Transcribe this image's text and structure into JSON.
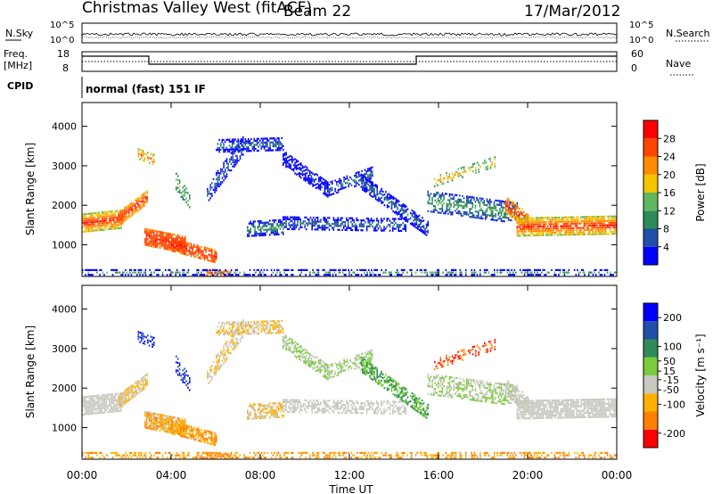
{
  "header": {
    "title": "Christmas Valley West (fitACF)",
    "beam": "Beam 22",
    "date": "17/Mar/2012"
  },
  "noise_panel": {
    "left_label": "N.Sky",
    "left_ticks": [
      "10^5",
      "10^0"
    ],
    "right_label": "N.Search",
    "right_ticks": [
      "10^5",
      "10^0"
    ]
  },
  "freq_panel": {
    "left_label_1": "Freq.",
    "left_label_2": "[MHz]",
    "left_ticks": [
      "18",
      "8"
    ],
    "right_label": "Nave",
    "right_ticks": [
      "60",
      "0"
    ]
  },
  "cpid": {
    "label": "CPID",
    "value": "normal (fast) 151 IF"
  },
  "colors": {
    "power_scale": [
      "#0000ff",
      "#1f4fa8",
      "#2e8b57",
      "#5fb85f",
      "#f5c400",
      "#ff8c00",
      "#ff4500",
      "#ff0000"
    ],
    "velocity_scale": [
      "#ff0000",
      "#ff7f00",
      "#ffb000",
      "#c8c8c0",
      "#7ccd3c",
      "#2e8b57",
      "#1f4fa8",
      "#0000ff"
    ]
  },
  "chart_data": [
    {
      "type": "heatmap",
      "ylabel": "Slant Range [km]",
      "xlabel": "Time UT",
      "x_ticks": [
        "00:00",
        "04:00",
        "08:00",
        "12:00",
        "16:00",
        "20:00",
        "00:00"
      ],
      "y_ticks": [
        1000,
        2000,
        3000,
        4000
      ],
      "ylim": [
        200,
        4600
      ],
      "xlim_hours": [
        0,
        24
      ],
      "colorbar": {
        "label": "Power [dB]",
        "ticks": [
          28,
          24,
          20,
          16,
          12,
          8,
          4
        ],
        "range": [
          0,
          32
        ]
      }
    },
    {
      "type": "heatmap",
      "ylabel": "Slant Range [km]",
      "xlabel": "Time UT",
      "x_ticks": [
        "00:00",
        "04:00",
        "08:00",
        "12:00",
        "16:00",
        "20:00",
        "00:00"
      ],
      "y_ticks": [
        1000,
        2000,
        3000,
        4000
      ],
      "ylim": [
        200,
        4600
      ],
      "xlim_hours": [
        0,
        24
      ],
      "colorbar": {
        "label": "Velocity [m s⁻¹]",
        "ticks": [
          200,
          100,
          50,
          15,
          -15,
          -50,
          -100,
          -200
        ],
        "range": [
          -250,
          250
        ]
      }
    }
  ]
}
